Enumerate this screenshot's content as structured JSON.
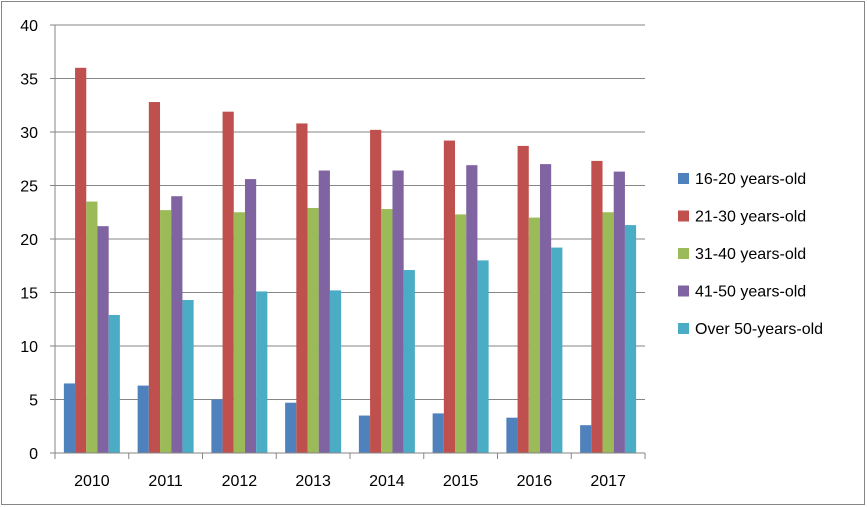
{
  "chart_data": {
    "type": "bar",
    "categories": [
      "2010",
      "2011",
      "2012",
      "2013",
      "2014",
      "2015",
      "2016",
      "2017"
    ],
    "series": [
      {
        "name": "16-20 years-old",
        "color": "#4F81BD",
        "values": [
          6.5,
          6.3,
          5.0,
          4.7,
          3.5,
          3.7,
          3.3,
          2.6
        ]
      },
      {
        "name": "21-30 years-old",
        "color": "#C0504D",
        "values": [
          36.0,
          32.8,
          31.9,
          30.8,
          30.2,
          29.2,
          28.7,
          27.3
        ]
      },
      {
        "name": "31-40 years-old",
        "color": "#9BBB59",
        "values": [
          23.5,
          22.7,
          22.5,
          22.9,
          22.8,
          22.3,
          22.0,
          22.5
        ]
      },
      {
        "name": "41-50 years-old",
        "color": "#8064A2",
        "values": [
          21.2,
          24.0,
          25.6,
          26.4,
          26.4,
          26.9,
          27.0,
          26.3
        ]
      },
      {
        "name": "Over 50-years-old",
        "color": "#4BACC6",
        "values": [
          12.9,
          14.3,
          15.1,
          15.2,
          17.1,
          18.0,
          19.2,
          21.3
        ]
      }
    ],
    "yticks": [
      "0",
      "5",
      "10",
      "15",
      "20",
      "25",
      "30",
      "35",
      "40"
    ],
    "ylim": [
      0,
      40
    ],
    "title": "",
    "xlabel": "",
    "ylabel": "",
    "grid": true,
    "legend_position": "right"
  }
}
